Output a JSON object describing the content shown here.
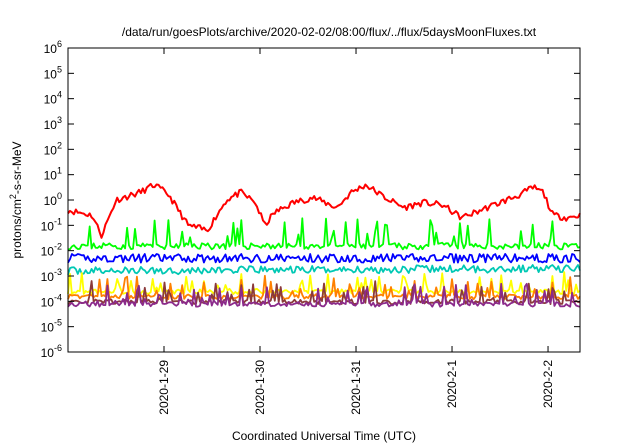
{
  "chart_data": {
    "type": "line",
    "title": "/data/run/goesPlots/archive/2020-02-02/08:00/flux/../flux/5daysMoonFluxes.txt",
    "xlabel": "Coordinated Universal Time (UTC)",
    "ylabel": "protons/cm2-s-sr-MeV",
    "ylabel_parts": {
      "pre": "protons/cm",
      "sup": "2",
      "post": "-s-sr-MeV"
    },
    "yscale": "log",
    "ylim_exp": [
      -6,
      6
    ],
    "ytick_base": "10",
    "ytick_exponents": [
      "6",
      "5",
      "4",
      "3",
      "2",
      "1",
      "0",
      "-1",
      "-2",
      "-3",
      "-4",
      "-5",
      "-6"
    ],
    "xlim": [
      "2020-01-28 00:00",
      "2020-02-02 08:00"
    ],
    "x_ticks": [
      {
        "label": "2020-1-29",
        "pos": 1.0
      },
      {
        "label": "2020-1-30",
        "pos": 2.0
      },
      {
        "label": "2020-1-31",
        "pos": 3.0
      },
      {
        "label": "2020-2-1",
        "pos": 4.0
      },
      {
        "label": "2020-2-2",
        "pos": 5.0
      }
    ],
    "x_span_days": 5.333,
    "grid": false,
    "series": [
      {
        "color": "#ff0000",
        "x_days": [
          0.0,
          0.25,
          0.35,
          0.5,
          0.75,
          0.9,
          1.05,
          1.25,
          1.45,
          1.65,
          1.8,
          1.95,
          2.05,
          2.15,
          2.35,
          2.55,
          2.8,
          2.95,
          3.1,
          3.3,
          3.5,
          3.7,
          3.9,
          4.1,
          4.3,
          4.5,
          4.7,
          4.85,
          4.95,
          5.05,
          5.2,
          5.333
        ],
        "log10_values": [
          -0.4,
          -0.6,
          -1.4,
          0.0,
          0.3,
          0.6,
          0.2,
          -1.0,
          -1.2,
          0.0,
          0.3,
          -0.1,
          -1.0,
          -0.5,
          -0.1,
          0.1,
          -0.3,
          0.3,
          0.6,
          0.1,
          -0.3,
          -0.1,
          -0.2,
          -0.7,
          -0.4,
          -0.1,
          0.2,
          0.5,
          0.3,
          -0.6,
          -0.7,
          -0.6
        ],
        "noise": 0.25,
        "seed": 11
      },
      {
        "color": "#00ff00",
        "x_days": [
          0.0,
          5.333
        ],
        "log10_values": [
          -1.8,
          -1.8
        ],
        "noise": 0.6,
        "seed": 23
      },
      {
        "color": "#00c8b4",
        "x_days": [
          0.0,
          5.333
        ],
        "log10_values": [
          -2.8,
          -2.7
        ],
        "noise": 0.3,
        "seed": 37
      },
      {
        "color": "#0000ff",
        "x_days": [
          0.0,
          5.333
        ],
        "log10_values": [
          -2.3,
          -2.3
        ],
        "noise": 0.35,
        "seed": 41
      },
      {
        "color": "#ffff00",
        "x_days": [
          0.0,
          5.333
        ],
        "log10_values": [
          -3.6,
          -3.6
        ],
        "noise": 0.45,
        "seed": 53
      },
      {
        "color": "#ff8000",
        "x_days": [
          0.0,
          5.333
        ],
        "log10_values": [
          -3.8,
          -3.8
        ],
        "noise": 0.45,
        "seed": 67
      },
      {
        "color": "#8b3a3a",
        "x_days": [
          0.0,
          5.333
        ],
        "log10_values": [
          -4.0,
          -4.0
        ],
        "noise": 0.45,
        "seed": 71
      },
      {
        "color": "#8b2a8b",
        "x_days": [
          0.0,
          5.333
        ],
        "log10_values": [
          -4.1,
          -4.1
        ],
        "noise": 0.45,
        "seed": 79
      }
    ]
  }
}
